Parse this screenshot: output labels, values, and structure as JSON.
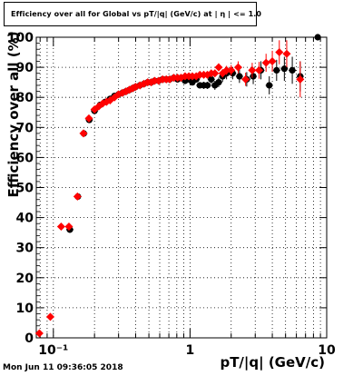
{
  "chart_data": {
    "type": "scatter",
    "title": "Efficiency over all for Global vs pT/|q| (GeV/c) at | η | <= 1.0",
    "xlabel": "pT/|q| (GeV/c)",
    "ylabel": "Efficiency over all (%)",
    "x_scale": "log",
    "xlim": [
      0.075,
      10
    ],
    "ylim": [
      0,
      100
    ],
    "grid": true,
    "x_ticks": [
      {
        "value": 0.1,
        "label": "10⁻¹"
      },
      {
        "value": 1,
        "label": "1"
      },
      {
        "value": 10,
        "label": "10"
      }
    ],
    "y_ticks": [
      0,
      10,
      20,
      30,
      40,
      50,
      60,
      70,
      80,
      90,
      100
    ],
    "series": [
      {
        "color": "#000000",
        "marker": "circle",
        "x": [
          0.132,
          0.151,
          0.167,
          0.183,
          0.2,
          0.22,
          0.24,
          0.26,
          0.28,
          0.3,
          0.32,
          0.34,
          0.36,
          0.38,
          0.4,
          0.43,
          0.46,
          0.49,
          0.52,
          0.55,
          0.59,
          0.63,
          0.67,
          0.71,
          0.76,
          0.81,
          0.86,
          0.92,
          0.98,
          1.04,
          1.11,
          1.18,
          1.26,
          1.34,
          1.43,
          1.52,
          1.62,
          1.73,
          1.85,
          2.05,
          2.3,
          2.6,
          2.9,
          3.3,
          3.8,
          4.3,
          4.9,
          5.6,
          6.4,
          8.6
        ],
        "y": [
          36,
          47,
          68,
          72.5,
          75.5,
          77.5,
          78.5,
          79.5,
          80.5,
          81,
          81.5,
          82,
          82.5,
          83,
          83.5,
          84,
          84.5,
          85,
          85,
          85.5,
          85.5,
          86,
          86,
          86,
          86.5,
          86,
          86.5,
          85.5,
          86,
          85,
          86,
          84,
          84,
          84,
          86,
          84,
          85,
          87,
          88,
          88,
          87,
          86,
          87,
          89,
          84,
          89,
          89.5,
          89,
          87,
          100
        ],
        "err": [
          1,
          1,
          1,
          1,
          1,
          0.8,
          0.8,
          0.6,
          0.6,
          0.6,
          0.6,
          0.5,
          0.5,
          0.5,
          0.5,
          0.5,
          0.5,
          0.5,
          0.5,
          0.5,
          0.5,
          0.5,
          0.5,
          0.5,
          0.6,
          0.6,
          0.6,
          0.8,
          0.8,
          0.8,
          1,
          1,
          1.2,
          1.2,
          1.4,
          1.5,
          1.6,
          1.8,
          2,
          2,
          2.2,
          2.4,
          2.6,
          3,
          3,
          3.5,
          4,
          4.5,
          5,
          0
        ]
      },
      {
        "color": "#ff0000",
        "marker": "diamond",
        "x": [
          0.079,
          0.095,
          0.114,
          0.13,
          0.15,
          0.166,
          0.182,
          0.2,
          0.215,
          0.23,
          0.245,
          0.26,
          0.28,
          0.3,
          0.32,
          0.34,
          0.36,
          0.38,
          0.4,
          0.43,
          0.46,
          0.49,
          0.52,
          0.55,
          0.59,
          0.63,
          0.67,
          0.71,
          0.76,
          0.81,
          0.86,
          0.92,
          0.98,
          1.04,
          1.11,
          1.18,
          1.26,
          1.34,
          1.43,
          1.52,
          1.62,
          1.73,
          1.85,
          2.0,
          2.25,
          2.55,
          2.85,
          3.2,
          3.6,
          4.0,
          4.5,
          5.1,
          6.4
        ],
        "y": [
          1.5,
          7,
          37,
          37,
          47,
          68,
          73,
          76,
          77,
          78,
          78.5,
          79,
          80,
          81,
          81.5,
          82,
          82.5,
          83,
          83.5,
          84,
          84.5,
          85,
          85,
          85.5,
          85.5,
          86,
          86,
          86,
          86.5,
          86.5,
          86.5,
          87,
          87,
          87,
          87,
          87.5,
          87.5,
          87.5,
          88,
          88,
          90,
          88,
          89,
          89,
          90,
          86,
          89,
          89,
          91.5,
          92,
          95,
          94.5,
          86
        ],
        "err": [
          0.5,
          0.8,
          1,
          1,
          1,
          1,
          1,
          0.8,
          0.8,
          0.6,
          0.6,
          0.6,
          0.5,
          0.5,
          0.5,
          0.5,
          0.5,
          0.5,
          0.5,
          0.5,
          0.5,
          0.5,
          0.5,
          0.5,
          0.5,
          0.5,
          0.5,
          0.5,
          0.5,
          0.5,
          0.6,
          0.6,
          0.6,
          0.7,
          0.8,
          0.9,
          1,
          1,
          1,
          1.2,
          1.3,
          1.4,
          1.5,
          1.8,
          2,
          2.2,
          2.5,
          2.8,
          3,
          3.5,
          4,
          4.5,
          6
        ]
      }
    ]
  },
  "footer_text": "Mon Jun 11 09:36:05 2018"
}
